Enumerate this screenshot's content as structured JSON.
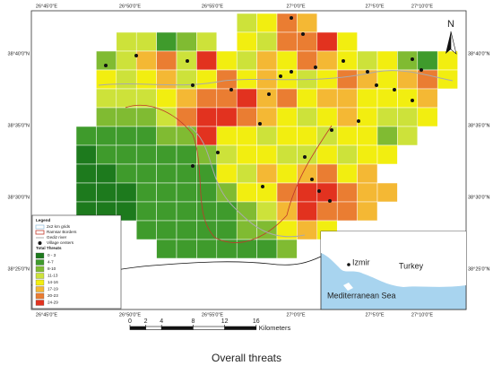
{
  "map": {
    "title": "Overall threats",
    "north": "N",
    "top_labels": [
      "26°45'0\"E",
      "26°50'0\"E",
      "26°55'0\"E",
      "27°0'0\"E",
      "27°5'0\"E",
      "27°10'0\"E"
    ],
    "bottom_labels": [
      "26°45'0\"E",
      "26°50'0\"E",
      "26°55'0\"E",
      "27°0'0\"E",
      "27°5'0\"E",
      "27°10'0\"E"
    ],
    "left_labels": [
      "38°40'0\"N",
      "38°35'0\"N",
      "38°30'0\"N",
      "38°25'0\"N"
    ],
    "right_labels": [
      "38°40'0\"N",
      "38°35'0\"N",
      "38°30'0\"N",
      "38°25'0\"N"
    ],
    "legend": {
      "title": "Legend",
      "items": [
        "2x2 km grids",
        "Ramsar Borders",
        "Gediz river",
        "Village centers"
      ],
      "classes_title": "Total Threats",
      "classes": [
        {
          "label": "0 - 3",
          "color": "#1d7a1d"
        },
        {
          "label": "4-7",
          "color": "#3f9b2c"
        },
        {
          "label": "8-10",
          "color": "#80bb32"
        },
        {
          "label": "11-13",
          "color": "#cde23a"
        },
        {
          "label": "14-16",
          "color": "#f2ee10"
        },
        {
          "label": "17-19",
          "color": "#f4b834"
        },
        {
          "label": "20-23",
          "color": "#ea7d32"
        },
        {
          "label": "24-29",
          "color": "#e2321f"
        }
      ]
    },
    "scale_bar": {
      "ticks": [
        0,
        2,
        4,
        8,
        12,
        16
      ],
      "unit": "Kilometers"
    },
    "inset": {
      "city": "Izmir",
      "country": "Turkey",
      "sea": "Mediterranean Sea"
    },
    "grid": {
      "cells": [
        [
          null,
          null,
          null,
          null,
          null,
          null,
          null,
          null,
          3,
          4,
          6,
          5,
          null,
          null,
          null,
          null,
          null,
          null,
          null
        ],
        [
          null,
          null,
          3,
          3,
          1,
          2,
          3,
          null,
          4,
          3,
          6,
          6,
          7,
          4,
          null,
          null,
          null,
          null,
          null
        ],
        [
          null,
          2,
          3,
          5,
          6,
          3,
          7,
          4,
          3,
          5,
          4,
          6,
          5,
          4,
          3,
          4,
          2,
          1,
          4
        ],
        [
          null,
          4,
          3,
          4,
          5,
          3,
          4,
          6,
          4,
          5,
          4,
          3,
          4,
          6,
          5,
          4,
          5,
          6,
          4
        ],
        [
          null,
          3,
          3,
          3,
          4,
          5,
          6,
          6,
          7,
          5,
          6,
          4,
          5,
          5,
          4,
          4,
          4,
          5,
          null
        ],
        [
          null,
          2,
          2,
          2,
          3,
          6,
          7,
          7,
          6,
          5,
          4,
          3,
          4,
          5,
          4,
          3,
          3,
          4,
          null
        ],
        [
          1,
          1,
          1,
          1,
          2,
          2,
          7,
          4,
          4,
          3,
          4,
          4,
          3,
          4,
          4,
          2,
          3,
          null,
          null
        ],
        [
          0,
          1,
          1,
          1,
          1,
          1,
          2,
          3,
          4,
          4,
          3,
          3,
          4,
          3,
          4,
          4,
          null,
          null,
          null
        ],
        [
          0,
          0,
          1,
          1,
          1,
          1,
          1,
          4,
          3,
          5,
          4,
          5,
          6,
          4,
          5,
          null,
          null,
          null,
          null
        ],
        [
          0,
          0,
          0,
          1,
          1,
          1,
          1,
          2,
          4,
          4,
          6,
          7,
          7,
          6,
          5,
          5,
          null,
          null,
          null
        ],
        [
          0,
          0,
          0,
          1,
          1,
          1,
          1,
          1,
          2,
          3,
          5,
          7,
          6,
          6,
          5,
          null,
          null,
          null,
          null
        ],
        [
          null,
          null,
          null,
          1,
          1,
          1,
          1,
          1,
          2,
          2,
          4,
          5,
          4,
          null,
          null,
          null,
          null,
          null,
          null
        ],
        [
          null,
          null,
          null,
          null,
          1,
          1,
          1,
          1,
          1,
          1,
          2,
          null,
          null,
          null,
          null,
          null,
          null,
          null,
          null
        ]
      ]
    }
  }
}
